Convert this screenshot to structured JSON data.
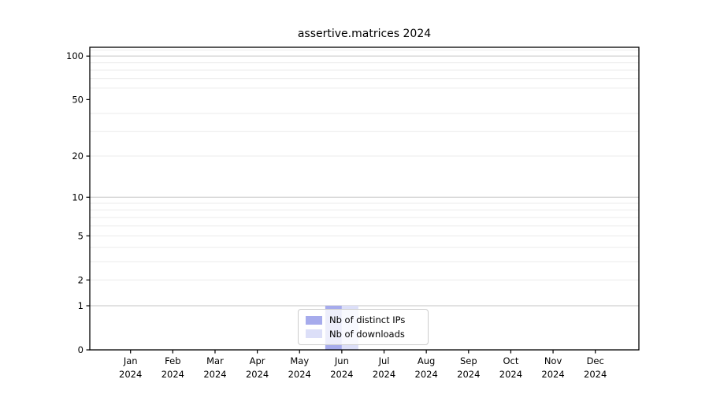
{
  "chart_data": {
    "type": "bar",
    "title": "assertive.matrices 2024",
    "scale": "log1p",
    "ylim": [
      0,
      115
    ],
    "categories": [
      "Jan",
      "Feb",
      "Mar",
      "Apr",
      "May",
      "Jun",
      "Jul",
      "Aug",
      "Sep",
      "Oct",
      "Nov",
      "Dec"
    ],
    "x_tick_year": "2024",
    "y_ticks": [
      0,
      1,
      2,
      5,
      10,
      20,
      50,
      100
    ],
    "gridlines": {
      "major": [
        1,
        10,
        100
      ],
      "minor": [
        2,
        3,
        4,
        5,
        6,
        7,
        8,
        9,
        20,
        30,
        40,
        60,
        70,
        80,
        90,
        110
      ]
    },
    "series": [
      {
        "name": "Nb of distinct IPs",
        "color": "#a6abec",
        "values": [
          0,
          0,
          0,
          0,
          0,
          1,
          0,
          0,
          0,
          0,
          0,
          0
        ]
      },
      {
        "name": "Nb of downloads",
        "color": "#dcdff8",
        "values": [
          0,
          0,
          0,
          0,
          0,
          1,
          0,
          0,
          0,
          0,
          0,
          0
        ]
      }
    ],
    "legend_position": "lower center",
    "colors": {
      "axis": "#000000",
      "tick_label": "#000000",
      "grid_major": "#c6c6c6",
      "grid_minor": "#ebebeb",
      "background": "#ffffff",
      "legend_border": "#cccccc"
    }
  }
}
